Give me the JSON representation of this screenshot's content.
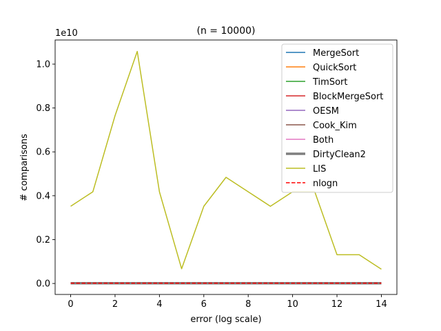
{
  "chart_data": {
    "type": "line",
    "title": "(n = 10000)",
    "xlabel": "error (log scale)",
    "ylabel": "# comparisons",
    "y_offset_label": "1e10",
    "xlim": [
      -0.7,
      14.7
    ],
    "ylim": [
      -0.05,
      1.11
    ],
    "x_ticks": [
      0,
      2,
      4,
      6,
      8,
      10,
      12,
      14
    ],
    "x_tick_labels": [
      "0",
      "2",
      "4",
      "6",
      "8",
      "10",
      "12",
      "14"
    ],
    "y_ticks": [
      0.0,
      0.2,
      0.4,
      0.6,
      0.8,
      1.0
    ],
    "y_tick_labels": [
      "0.0",
      "0.2",
      "0.4",
      "0.6",
      "0.8",
      "1.0"
    ],
    "grid": false,
    "legend_position": "top-right",
    "x": [
      0,
      1,
      2,
      3,
      4,
      5,
      6,
      7,
      8,
      9,
      10,
      11,
      12,
      13,
      14
    ],
    "series": [
      {
        "name": "MergeSort",
        "color": "#1f77b4",
        "style": "solid",
        "width": 1.5,
        "values": [
          0.001,
          0.001,
          0.001,
          0.001,
          0.001,
          0.001,
          0.001,
          0.001,
          0.001,
          0.001,
          0.001,
          0.001,
          0.001,
          0.001,
          0.001
        ]
      },
      {
        "name": "QuickSort",
        "color": "#ff7f0e",
        "style": "solid",
        "width": 1.5,
        "values": [
          0.002,
          0.002,
          0.002,
          0.002,
          0.002,
          0.002,
          0.002,
          0.002,
          0.002,
          0.002,
          0.002,
          0.002,
          0.002,
          0.002,
          0.002
        ]
      },
      {
        "name": "TimSort",
        "color": "#2ca02c",
        "style": "solid",
        "width": 1.5,
        "values": [
          0.001,
          0.001,
          0.001,
          0.001,
          0.001,
          0.001,
          0.001,
          0.001,
          0.001,
          0.001,
          0.001,
          0.001,
          0.001,
          0.001,
          0.001
        ]
      },
      {
        "name": "BlockMergeSort",
        "color": "#d62728",
        "style": "solid",
        "width": 1.5,
        "values": [
          0.002,
          0.002,
          0.002,
          0.002,
          0.002,
          0.002,
          0.002,
          0.002,
          0.002,
          0.002,
          0.002,
          0.002,
          0.002,
          0.002,
          0.002
        ]
      },
      {
        "name": "OESM",
        "color": "#9467bd",
        "style": "solid",
        "width": 1.5,
        "values": [
          0.002,
          0.002,
          0.002,
          0.002,
          0.002,
          0.002,
          0.002,
          0.002,
          0.002,
          0.002,
          0.002,
          0.002,
          0.002,
          0.002,
          0.002
        ]
      },
      {
        "name": "Cook_Kim",
        "color": "#8c564b",
        "style": "solid",
        "width": 1.5,
        "values": [
          0.001,
          0.001,
          0.001,
          0.001,
          0.001,
          0.001,
          0.001,
          0.001,
          0.001,
          0.001,
          0.001,
          0.001,
          0.001,
          0.001,
          0.001
        ]
      },
      {
        "name": "Both",
        "color": "#e377c2",
        "style": "solid",
        "width": 1.5,
        "values": [
          0.001,
          0.001,
          0.001,
          0.001,
          0.001,
          0.001,
          0.001,
          0.001,
          0.001,
          0.001,
          0.001,
          0.001,
          0.001,
          0.001,
          0.001
        ]
      },
      {
        "name": "DirtyClean2",
        "color": "#7f7f7f",
        "style": "solid",
        "width": 3.5,
        "values": [
          0.001,
          0.001,
          0.001,
          0.001,
          0.001,
          0.001,
          0.001,
          0.001,
          0.001,
          0.001,
          0.001,
          0.001,
          0.001,
          0.001,
          0.001
        ]
      },
      {
        "name": "LIS",
        "color": "#bcbd22",
        "style": "solid",
        "width": 1.5,
        "values": [
          0.352,
          0.418,
          0.765,
          1.058,
          0.418,
          0.067,
          0.352,
          0.484,
          0.418,
          0.352,
          0.418,
          0.418,
          0.131,
          0.131,
          0.065
        ]
      },
      {
        "name": "nlogn",
        "color": "#ff0000",
        "style": "dashed",
        "width": 1.5,
        "values": [
          0.0013,
          0.0013,
          0.0013,
          0.0013,
          0.0013,
          0.0013,
          0.0013,
          0.0013,
          0.0013,
          0.0013,
          0.0013,
          0.0013,
          0.0013,
          0.0013,
          0.0013
        ]
      }
    ]
  }
}
